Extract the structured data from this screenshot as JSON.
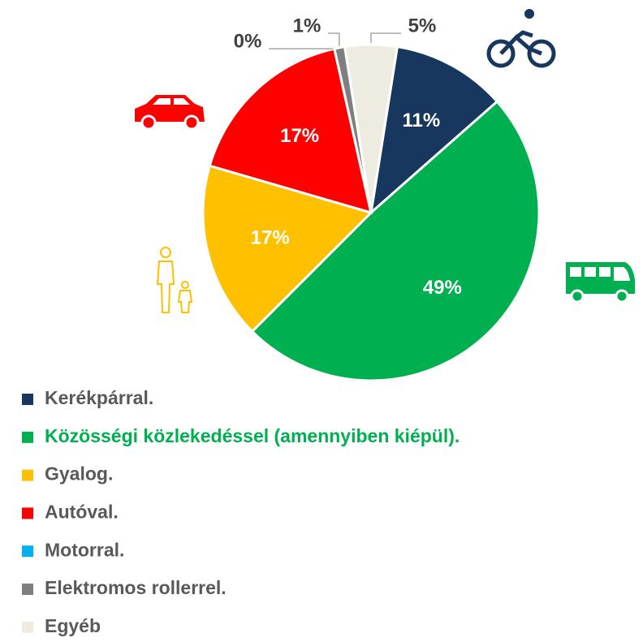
{
  "chart_data": {
    "type": "pie",
    "categories": [
      "Kerékpárral.",
      "Közösségi közlekedéssel (amennyiben kiépül).",
      "Gyalog.",
      "Autóval.",
      "Motorral.",
      "Elektromos rollerrel.",
      "Egyéb"
    ],
    "values": [
      11,
      49,
      17,
      17,
      0,
      1,
      5
    ],
    "value_labels": [
      "11%",
      "49%",
      "17%",
      "17%",
      "0%",
      "1%",
      "5%"
    ],
    "colors": [
      "#17375e",
      "#00b050",
      "#ffc000",
      "#ff0000",
      "#00b0f0",
      "#7f7f7f",
      "#eeece1"
    ],
    "legend": "bottom"
  }
}
